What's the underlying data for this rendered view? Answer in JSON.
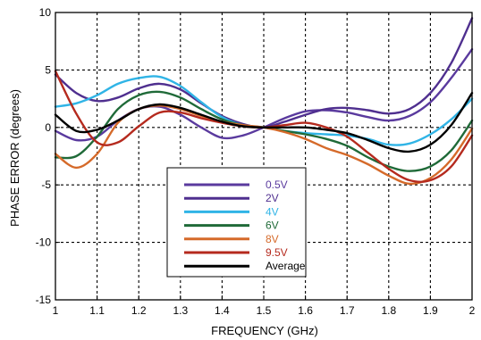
{
  "chart_data": {
    "type": "line",
    "title": "",
    "xlabel": "FREQUENCY (GHz)",
    "ylabel": "PHASE ERROR (degrees)",
    "xlim": [
      1,
      2
    ],
    "ylim": [
      -15,
      10
    ],
    "xticks": [
      "1",
      "1.1",
      "1.2",
      "1.3",
      "1.4",
      "1.5",
      "1.6",
      "1.7",
      "1.8",
      "1.9",
      "2"
    ],
    "yticks": [
      "10",
      "5",
      "0",
      "-5",
      "-10",
      "-15"
    ],
    "grid": true,
    "legend_position": "lower-center",
    "series": [
      {
        "name": "0.5V",
        "color": "#5a3a9e",
        "x": [
          1.0,
          1.05,
          1.1,
          1.15,
          1.2,
          1.25,
          1.3,
          1.35,
          1.4,
          1.45,
          1.5,
          1.55,
          1.6,
          1.65,
          1.7,
          1.75,
          1.8,
          1.85,
          1.9,
          1.95,
          2.0
        ],
        "y": [
          -0.3,
          -1.1,
          -0.8,
          0.6,
          1.6,
          1.8,
          1.1,
          0.0,
          -0.9,
          -0.7,
          0.0,
          0.8,
          1.4,
          1.5,
          1.3,
          0.9,
          0.6,
          1.0,
          2.2,
          4.3,
          6.8
        ]
      },
      {
        "name": "2V",
        "color": "#4f2f8f",
        "x": [
          1.0,
          1.05,
          1.1,
          1.15,
          1.2,
          1.25,
          1.3,
          1.35,
          1.4,
          1.45,
          1.5,
          1.55,
          1.6,
          1.65,
          1.7,
          1.75,
          1.8,
          1.85,
          1.9,
          1.95,
          2.0
        ],
        "y": [
          4.6,
          3.0,
          2.3,
          2.6,
          3.4,
          3.8,
          3.3,
          2.1,
          1.0,
          0.3,
          0.0,
          0.5,
          1.1,
          1.6,
          1.7,
          1.5,
          1.2,
          1.6,
          3.0,
          5.6,
          9.5
        ]
      },
      {
        "name": "4V",
        "color": "#30b4e6",
        "x": [
          1.0,
          1.05,
          1.1,
          1.15,
          1.2,
          1.25,
          1.3,
          1.35,
          1.4,
          1.45,
          1.5,
          1.55,
          1.6,
          1.65,
          1.7,
          1.75,
          1.8,
          1.85,
          1.9,
          1.95,
          2.0
        ],
        "y": [
          1.8,
          2.1,
          2.8,
          3.8,
          4.3,
          4.4,
          3.6,
          2.2,
          0.9,
          0.2,
          0.0,
          -0.3,
          -0.5,
          -0.6,
          -0.7,
          -1.0,
          -1.5,
          -1.4,
          -0.6,
          0.7,
          2.5
        ]
      },
      {
        "name": "6V",
        "color": "#1f6a38",
        "x": [
          1.0,
          1.05,
          1.1,
          1.15,
          1.2,
          1.25,
          1.3,
          1.35,
          1.4,
          1.45,
          1.5,
          1.55,
          1.6,
          1.65,
          1.7,
          1.75,
          1.8,
          1.85,
          1.9,
          1.95,
          2.0
        ],
        "y": [
          -2.6,
          -2.5,
          -0.8,
          1.6,
          2.8,
          3.1,
          2.6,
          1.6,
          0.7,
          0.2,
          0.0,
          -0.3,
          -0.6,
          -1.0,
          -1.6,
          -2.6,
          -3.4,
          -3.8,
          -3.4,
          -2.0,
          0.6
        ]
      },
      {
        "name": "8V",
        "color": "#d56a2a",
        "x": [
          1.0,
          1.05,
          1.1,
          1.15,
          1.2,
          1.25,
          1.3,
          1.35,
          1.4,
          1.45,
          1.5,
          1.55,
          1.6,
          1.65,
          1.7,
          1.75,
          1.8,
          1.85,
          1.9,
          1.95,
          2.0
        ],
        "y": [
          -2.3,
          -3.5,
          -2.3,
          0.4,
          1.6,
          1.9,
          1.6,
          1.0,
          0.5,
          0.2,
          0.0,
          -0.4,
          -1.0,
          -1.8,
          -2.4,
          -3.2,
          -4.2,
          -4.9,
          -4.4,
          -2.8,
          -0.1
        ]
      },
      {
        "name": "9.5V",
        "color": "#b52a1e",
        "x": [
          1.0,
          1.05,
          1.1,
          1.15,
          1.2,
          1.25,
          1.3,
          1.35,
          1.4,
          1.45,
          1.5,
          1.55,
          1.6,
          1.65,
          1.7,
          1.75,
          1.8,
          1.85,
          1.9,
          1.95,
          2.0
        ],
        "y": [
          4.9,
          1.2,
          -1.3,
          -1.3,
          0.1,
          1.3,
          1.3,
          0.8,
          0.4,
          0.1,
          0.0,
          0.2,
          0.4,
          0.0,
          -0.8,
          -2.2,
          -3.6,
          -4.6,
          -4.6,
          -3.4,
          -0.7
        ]
      },
      {
        "name": "Average",
        "color": "#000000",
        "x": [
          1.0,
          1.05,
          1.1,
          1.15,
          1.2,
          1.25,
          1.3,
          1.35,
          1.4,
          1.45,
          1.5,
          1.55,
          1.6,
          1.65,
          1.7,
          1.75,
          1.8,
          1.85,
          1.9,
          1.95,
          2.0
        ],
        "y": [
          1.1,
          -0.3,
          -0.2,
          0.6,
          1.6,
          2.0,
          1.7,
          1.1,
          0.5,
          0.1,
          0.0,
          0.0,
          0.0,
          -0.2,
          -0.5,
          -1.1,
          -1.8,
          -2.1,
          -1.5,
          0.2,
          3.0
        ]
      }
    ]
  }
}
